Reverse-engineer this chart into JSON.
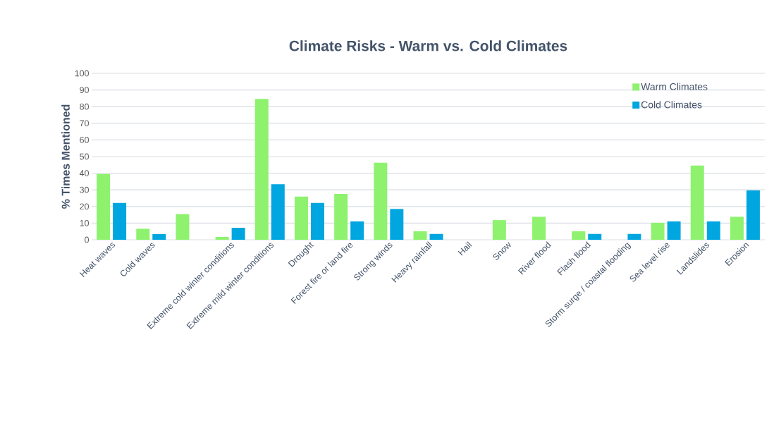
{
  "chart_data": {
    "type": "bar",
    "title": "Climate Risks - Warm vs. Cold Climates",
    "ylabel": "% Times Mentioned",
    "categories": [
      "Heat waves",
      "Cold waves",
      null,
      "Extreme cold winter conditions",
      "Extreme mild winter conditions",
      "Drought",
      "Forest fire or land fire",
      "Strong winds",
      "Heavy rainfall",
      "Hail",
      "Snow",
      "River flood",
      "Flash flood",
      "Storm surge / coastal flooding",
      "Sea level rise",
      "Landslides",
      "Erosion"
    ],
    "series": [
      {
        "name": "Warm Climates",
        "color": "#8ef26e",
        "values": [
          39.5,
          6.6,
          15.4,
          1.7,
          84.6,
          25.9,
          27.5,
          46.3,
          5.1,
          null,
          11.8,
          13.8,
          5.1,
          null,
          10.2,
          44.6,
          13.8
        ]
      },
      {
        "name": "Cold Climates",
        "color": "#00a6e0",
        "values": [
          22.1,
          3.4,
          null,
          7.2,
          33.4,
          22.1,
          11.0,
          18.5,
          3.5,
          null,
          null,
          null,
          3.5,
          3.5,
          11.0,
          11.0,
          29.7
        ]
      }
    ],
    "ylim": [
      0,
      100
    ],
    "yticks": [
      0,
      10,
      20,
      30,
      40,
      50,
      60,
      70,
      80,
      90,
      100
    ],
    "grid": "y",
    "legend": "top right"
  }
}
